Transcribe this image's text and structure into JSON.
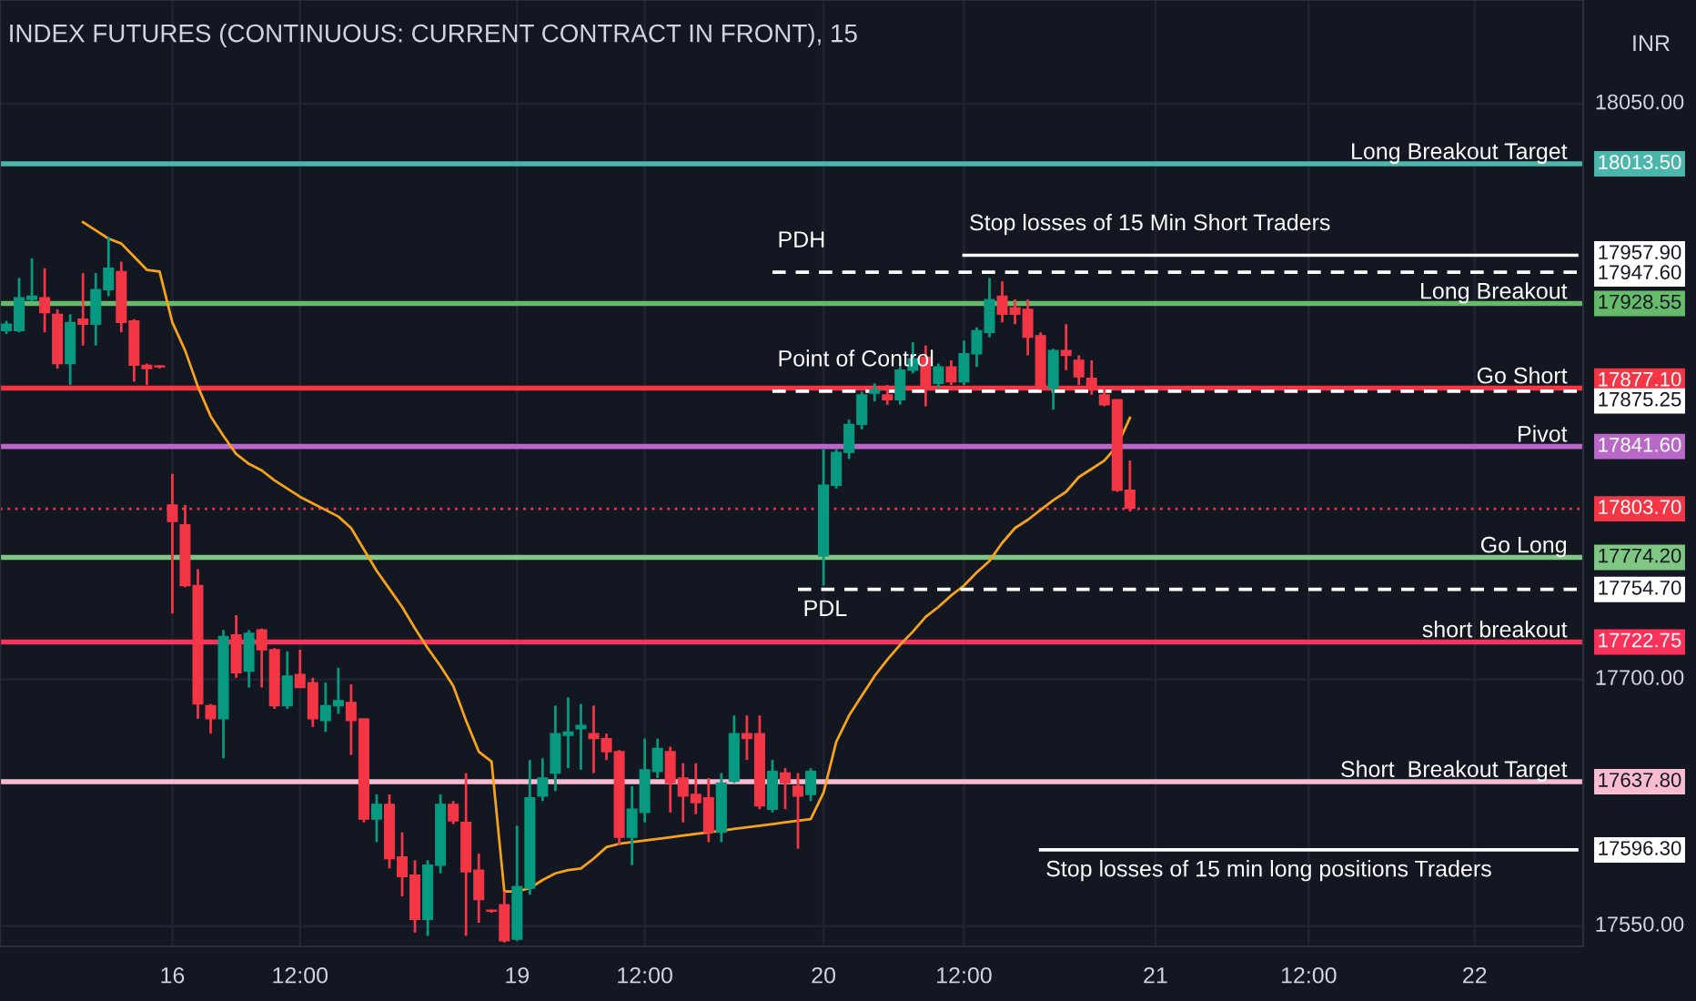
{
  "chart_data": {
    "type": "candlestick",
    "title": "INDEX FUTURES (CONTINUOUS: CURRENT CONTRACT IN FRONT), 15",
    "categories": [
      null,
      null,
      null,
      null,
      null,
      null,
      null,
      null,
      null,
      null,
      null,
      null,
      null,
      "16",
      null,
      null,
      null,
      null,
      null,
      null,
      null,
      null,
      null,
      "12:00",
      null,
      null,
      null,
      null,
      null,
      null,
      null,
      null,
      null,
      null,
      null,
      null,
      null,
      null,
      null,
      null,
      "19",
      null,
      null,
      null,
      null,
      null,
      null,
      null,
      null,
      null,
      "12:00",
      null,
      null,
      null,
      null,
      null,
      null,
      null,
      null,
      null,
      null,
      null,
      null,
      null,
      "20",
      null,
      null,
      null,
      null,
      null,
      null,
      null,
      null,
      null,
      null,
      "12:00",
      null,
      null,
      null,
      null,
      null,
      null,
      null,
      null,
      null,
      null,
      null,
      null,
      null,
      null,
      "21",
      null,
      null,
      null,
      null,
      null,
      null,
      null,
      null,
      null,
      null,
      null,
      "12:00",
      null,
      null,
      null,
      null,
      null,
      null,
      null,
      null,
      null,
      null,
      null,
      null,
      "22",
      null,
      null,
      null,
      null,
      null,
      null,
      null,
      null
    ],
    "ohlc": [
      [
        17912,
        17918,
        17910,
        17916
      ],
      [
        17912,
        17944,
        17911,
        17932
      ],
      [
        17931,
        17956,
        17930,
        17933
      ],
      [
        17932,
        17950,
        17911,
        17923
      ],
      [
        17922,
        17925,
        17889,
        17892
      ],
      [
        17892,
        17922,
        17879,
        17917
      ],
      [
        17919,
        17947,
        17903,
        17916
      ],
      [
        17916,
        17947,
        17903,
        17937
      ],
      [
        17937,
        17969,
        17933,
        17950
      ],
      [
        17948,
        17954,
        17911,
        17917
      ],
      [
        17918,
        17919,
        17881,
        17891
      ],
      [
        17891,
        17892,
        17879,
        17889
      ],
      [
        17890,
        17891,
        17889,
        17890
      ],
      [
        17806,
        17825,
        17740,
        17796
      ],
      [
        17794,
        17806,
        17756,
        17757
      ],
      [
        17757,
        17767,
        17676,
        17685
      ],
      [
        17684,
        17685,
        17667,
        17676
      ],
      [
        17676,
        17730,
        17652,
        17726
      ],
      [
        17727,
        17739,
        17701,
        17704
      ],
      [
        17705,
        17730,
        17695,
        17728
      ],
      [
        17730,
        17731,
        17695,
        17718
      ],
      [
        17718,
        17719,
        17682,
        17684
      ],
      [
        17684,
        17717,
        17682,
        17702
      ],
      [
        17703,
        17718,
        17695,
        17695
      ],
      [
        17698,
        17701,
        17671,
        17676
      ],
      [
        17675,
        17698,
        17668,
        17684
      ],
      [
        17684,
        17707,
        17679,
        17687
      ],
      [
        17686,
        17697,
        17654,
        17675
      ],
      [
        17676,
        17676,
        17613,
        17615
      ],
      [
        17615,
        17630,
        17601,
        17624
      ],
      [
        17624,
        17630,
        17585,
        17591
      ],
      [
        17592,
        17607,
        17568,
        17580
      ],
      [
        17581,
        17590,
        17546,
        17554
      ],
      [
        17554,
        17590,
        17544,
        17587
      ],
      [
        17587,
        17630,
        17582,
        17624
      ],
      [
        17624,
        17626,
        17612,
        17614
      ],
      [
        17613,
        17643,
        17544,
        17583
      ],
      [
        17584,
        17594,
        17552,
        17566
      ],
      [
        17559,
        17560,
        17558,
        17559
      ],
      [
        17563,
        17571,
        17540,
        17541
      ],
      [
        17542,
        17611,
        17541,
        17574
      ],
      [
        17573,
        17651,
        17569,
        17628
      ],
      [
        17629,
        17652,
        17626,
        17640
      ],
      [
        17643,
        17684,
        17632,
        17667
      ],
      [
        17666,
        17689,
        17646,
        17668
      ],
      [
        17670,
        17685,
        17645,
        17672
      ],
      [
        17667,
        17684,
        17643,
        17664
      ],
      [
        17664,
        17667,
        17651,
        17656
      ],
      [
        17656,
        17657,
        17599,
        17604
      ],
      [
        17604,
        17635,
        17587,
        17621
      ],
      [
        17619,
        17664,
        17613,
        17645
      ],
      [
        17644,
        17664,
        17640,
        17658
      ],
      [
        17656,
        17659,
        17619,
        17637
      ],
      [
        17640,
        17649,
        17613,
        17629
      ],
      [
        17630,
        17649,
        17618,
        17625
      ],
      [
        17628,
        17640,
        17601,
        17607
      ],
      [
        17607,
        17643,
        17601,
        17637
      ],
      [
        17638,
        17678,
        17637,
        17667
      ],
      [
        17667,
        17678,
        17651,
        17664
      ],
      [
        17667,
        17678,
        17621,
        17623
      ],
      [
        17621,
        17651,
        17619,
        17644
      ],
      [
        17643,
        17646,
        17621,
        17637
      ],
      [
        17635,
        17643,
        17597,
        17629
      ],
      [
        17630,
        17646,
        17626,
        17644
      ],
      [
        17775,
        17840,
        17757,
        17818
      ],
      [
        17818,
        17840,
        17816,
        17838
      ],
      [
        17838,
        17858,
        17834,
        17855
      ],
      [
        17855,
        17875,
        17852,
        17873
      ],
      [
        17874,
        17880,
        17869,
        17876
      ],
      [
        17873,
        17879,
        17867,
        17870
      ],
      [
        17870,
        17890,
        17867,
        17888
      ],
      [
        17888,
        17905,
        17886,
        17895
      ],
      [
        17896,
        17903,
        17866,
        17877
      ],
      [
        17880,
        17892,
        17877,
        17890
      ],
      [
        17890,
        17894,
        17879,
        17881
      ],
      [
        17881,
        17906,
        17879,
        17898
      ],
      [
        17898,
        17914,
        17890,
        17912
      ],
      [
        17911,
        17944,
        17908,
        17931
      ],
      [
        17933,
        17942,
        17917,
        17922
      ],
      [
        17926,
        17931,
        17916,
        17922
      ],
      [
        17925,
        17931,
        17897,
        17908
      ],
      [
        17909,
        17911,
        17876,
        17877
      ],
      [
        17877,
        17901,
        17864,
        17900
      ],
      [
        17900,
        17916,
        17888,
        17897
      ],
      [
        17894,
        17897,
        17879,
        17884
      ],
      [
        17883,
        17894,
        17873,
        17877
      ],
      [
        17873,
        17877,
        17866,
        17867
      ],
      [
        17870,
        17870,
        17814,
        17815
      ],
      [
        17815,
        17833,
        17802,
        17804
      ],
      null,
      null,
      null,
      null,
      null,
      null,
      null,
      null,
      null,
      null,
      null,
      null,
      null,
      null,
      null,
      null,
      null,
      null,
      null,
      null,
      null,
      null,
      null,
      null,
      null,
      null,
      null,
      null,
      null,
      null,
      null,
      null,
      null,
      null,
      null
    ],
    "colors": [
      "#089981",
      "#089981",
      "#089981",
      "#f23645",
      "#f23645",
      "#089981",
      "#f23645",
      "#089981",
      "#089981",
      "#f23645",
      "#f23645",
      "#f23645",
      "#f23645",
      "#f23645",
      "#f23645",
      "#f23645",
      "#f23645",
      "#089981",
      "#f23645",
      "#089981",
      "#f23645",
      "#f23645",
      "#089981",
      "#f23645",
      "#f23645",
      "#089981",
      "#089981",
      "#f23645",
      "#f23645",
      "#089981",
      "#f23645",
      "#f23645",
      "#f23645",
      "#089981",
      "#089981",
      "#f23645",
      "#f23645",
      "#f23645",
      "#f23645",
      "#f23645",
      "#089981",
      "#089981",
      "#089981",
      "#089981",
      "#089981",
      "#089981",
      "#f23645",
      "#f23645",
      "#f23645",
      "#089981",
      "#089981",
      "#089981",
      "#f23645",
      "#f23645",
      "#f23645",
      "#f23645",
      "#089981",
      "#089981",
      "#f23645",
      "#f23645",
      "#089981",
      "#f23645",
      "#f23645",
      "#089981",
      "#089981",
      "#089981",
      "#089981",
      "#089981",
      "#089981",
      "#f23645",
      "#089981",
      "#089981",
      "#f23645",
      "#089981",
      "#f23645",
      "#089981",
      "#089981",
      "#089981",
      "#f23645",
      "#f23645",
      "#f23645",
      "#f23645",
      "#089981",
      "#f23645",
      "#f23645",
      "#f23645",
      "#f23645",
      "#f23645",
      "#f23645",
      null,
      null,
      null,
      null,
      null,
      null,
      null,
      null,
      null,
      null,
      null,
      null,
      null,
      null,
      null,
      null,
      null,
      null,
      null,
      null,
      null,
      null,
      null,
      null,
      null,
      null,
      null,
      null,
      null,
      null,
      null,
      null,
      null,
      null,
      null
    ],
    "series": [
      {
        "type": "line",
        "color": "#f7a21b",
        "values": [
          null,
          null,
          null,
          null,
          null,
          null,
          17978,
          17973,
          17968,
          17965,
          17957,
          17949,
          17948,
          17917,
          17900,
          17878,
          17860,
          17848,
          17837,
          17831,
          17827,
          17821,
          17816,
          17811,
          17807,
          17803,
          17799,
          17792,
          17779,
          17766,
          17755,
          17744,
          17731,
          17719,
          17708,
          17696,
          17675,
          17656,
          17650,
          17571,
          17571,
          17573,
          17578,
          17582,
          17584,
          17585,
          17591,
          17598,
          17600,
          17601,
          17602,
          17603,
          17604,
          17605,
          17606,
          17607,
          17608,
          17609,
          17610,
          17611,
          17612,
          17613,
          17614,
          17615,
          17631,
          17662,
          17678,
          17690,
          17702,
          17712,
          17721,
          17729,
          17738,
          17744,
          17751,
          17757,
          17765,
          17772,
          17783,
          17792,
          17797,
          17803,
          17809,
          17814,
          17823,
          17828,
          17833,
          17842,
          17859,
          null,
          null,
          null,
          null,
          null,
          null,
          null,
          null,
          null,
          null,
          null,
          null,
          null,
          null,
          null,
          null,
          null,
          null,
          null,
          null,
          null,
          null,
          null,
          null,
          null,
          null,
          null,
          null,
          null,
          null,
          null,
          null,
          null,
          null,
          null
        ]
      },
      {
        "type": "line",
        "color": "#ffffff",
        "line_style": "solid",
        "values": [
          null,
          null,
          null,
          null,
          null,
          null,
          null,
          null,
          null,
          null,
          null,
          null,
          null,
          null,
          null,
          null,
          null,
          null,
          null,
          null,
          null,
          null,
          null,
          null,
          null,
          null,
          null,
          null,
          null,
          null,
          null,
          null,
          null,
          null,
          null,
          null,
          null,
          null,
          null,
          null,
          null,
          null,
          null,
          null,
          null,
          null,
          null,
          null,
          null,
          null,
          null,
          null,
          null,
          null,
          null,
          null,
          null,
          null,
          null,
          null,
          null,
          null,
          null,
          null,
          null,
          null,
          null,
          null,
          null,
          null,
          null,
          null,
          null,
          null,
          null,
          17957.9,
          17957.9,
          17957.9,
          17957.9,
          17957.9,
          17957.9,
          17957.9,
          17957.9,
          17957.9,
          17957.9,
          17957.9,
          17957.9,
          17957.9,
          17957.9,
          17957.9,
          17957.9,
          17957.9,
          17957.9,
          17957.9,
          17957.9,
          17957.9,
          17957.9,
          17957.9,
          17957.9,
          17957.9,
          17957.9,
          17957.9,
          17957.9,
          17957.9,
          17957.9,
          17957.9,
          17957.9,
          17957.9,
          17957.9,
          17957.9,
          17957.9,
          17957.9,
          17957.9,
          17957.9,
          17957.9,
          17957.9,
          17957.9,
          17957.9,
          17957.9,
          17957.9,
          17957.9,
          17957.9,
          17957.9,
          17957.9
        ]
      },
      {
        "type": "line",
        "color": "#ffffff",
        "line_style": "dashed",
        "values": [
          null,
          null,
          null,
          null,
          null,
          null,
          null,
          null,
          null,
          null,
          null,
          null,
          null,
          null,
          null,
          null,
          null,
          null,
          null,
          null,
          null,
          null,
          null,
          null,
          null,
          null,
          null,
          null,
          null,
          null,
          null,
          null,
          null,
          null,
          null,
          null,
          null,
          null,
          null,
          null,
          null,
          null,
          null,
          null,
          null,
          null,
          null,
          null,
          null,
          null,
          null,
          null,
          null,
          null,
          null,
          null,
          null,
          null,
          null,
          null,
          17947.6,
          17947.6,
          17947.6,
          17947.6,
          17947.6,
          17947.6,
          17947.6,
          17947.6,
          17947.6,
          17947.6,
          17947.6,
          17947.6,
          17947.6,
          17947.6,
          17947.6,
          17947.6,
          17947.6,
          17947.6,
          17947.6,
          17947.6,
          17947.6,
          17947.6,
          17947.6,
          17947.6,
          17947.6,
          17947.6,
          17947.6,
          17947.6,
          17947.6,
          17947.6,
          17947.6,
          17947.6,
          17947.6,
          17947.6,
          17947.6,
          17947.6,
          17947.6,
          17947.6,
          17947.6,
          17947.6,
          17947.6,
          17947.6,
          17947.6,
          17947.6,
          17947.6,
          17947.6,
          17947.6,
          17947.6,
          17947.6,
          17947.6,
          17947.6,
          17947.6,
          17947.6,
          17947.6,
          17947.6,
          17947.6,
          17947.6,
          17947.6,
          17947.6,
          17947.6,
          17947.6,
          17947.6,
          17947.6,
          17947.6
        ]
      },
      {
        "type": "line",
        "color": "#ffffff",
        "line_style": "dashed",
        "values": [
          null,
          null,
          null,
          null,
          null,
          null,
          null,
          null,
          null,
          null,
          null,
          null,
          null,
          null,
          null,
          null,
          null,
          null,
          null,
          null,
          null,
          null,
          null,
          null,
          null,
          null,
          null,
          null,
          null,
          null,
          null,
          null,
          null,
          null,
          null,
          null,
          null,
          null,
          null,
          null,
          null,
          null,
          null,
          null,
          null,
          null,
          null,
          null,
          null,
          null,
          null,
          null,
          null,
          null,
          null,
          null,
          null,
          null,
          null,
          null,
          17875.25,
          17875.25,
          17875.25,
          17875.25,
          17875.25,
          17875.25,
          17875.25,
          17875.25,
          17875.25,
          17875.25,
          17875.25,
          17875.25,
          17875.25,
          17875.25,
          17875.25,
          17875.25,
          17875.25,
          17875.25,
          17875.25,
          17875.25,
          17875.25,
          17875.25,
          17875.25,
          17875.25,
          17875.25,
          17875.25,
          17875.25,
          17875.25,
          17875.25,
          17875.25,
          17875.25,
          17875.25,
          17875.25,
          17875.25,
          17875.25,
          17875.25,
          17875.25,
          17875.25,
          17875.25,
          17875.25,
          17875.25,
          17875.25,
          17875.25,
          17875.25,
          17875.25,
          17875.25,
          17875.25,
          17875.25,
          17875.25,
          17875.25,
          17875.25,
          17875.25,
          17875.25,
          17875.25,
          17875.25,
          17875.25,
          17875.25,
          17875.25,
          17875.25,
          17875.25,
          17875.25,
          17875.25,
          17875.25,
          17875.25
        ]
      },
      {
        "type": "line",
        "color": "#ffffff",
        "line_style": "dashed",
        "values": [
          null,
          null,
          null,
          null,
          null,
          null,
          null,
          null,
          null,
          null,
          null,
          null,
          null,
          null,
          null,
          null,
          null,
          null,
          null,
          null,
          null,
          null,
          null,
          null,
          null,
          null,
          null,
          null,
          null,
          null,
          null,
          null,
          null,
          null,
          null,
          null,
          null,
          null,
          null,
          null,
          null,
          null,
          null,
          null,
          null,
          null,
          null,
          null,
          null,
          null,
          null,
          null,
          null,
          null,
          null,
          null,
          null,
          null,
          null,
          null,
          null,
          null,
          17754.7,
          17754.7,
          17754.7,
          17754.7,
          17754.7,
          17754.7,
          17754.7,
          17754.7,
          17754.7,
          17754.7,
          17754.7,
          17754.7,
          17754.7,
          17754.7,
          17754.7,
          17754.7,
          17754.7,
          17754.7,
          17754.7,
          17754.7,
          17754.7,
          17754.7,
          17754.7,
          17754.7,
          17754.7,
          17754.7,
          17754.7,
          17754.7,
          17754.7,
          17754.7,
          17754.7,
          17754.7,
          17754.7,
          17754.7,
          17754.7,
          17754.7,
          17754.7,
          17754.7,
          17754.7,
          17754.7,
          17754.7,
          17754.7,
          17754.7,
          17754.7,
          17754.7,
          17754.7,
          17754.7,
          17754.7,
          17754.7,
          17754.7,
          17754.7,
          17754.7,
          17754.7,
          17754.7,
          17754.7,
          17754.7,
          17754.7,
          17754.7,
          17754.7,
          17754.7,
          17754.7,
          17754.7
        ]
      },
      {
        "type": "line",
        "color": "#ffffff",
        "line_style": "solid",
        "values": [
          null,
          null,
          null,
          null,
          null,
          null,
          null,
          null,
          null,
          null,
          null,
          null,
          null,
          null,
          null,
          null,
          null,
          null,
          null,
          null,
          null,
          null,
          null,
          null,
          null,
          null,
          null,
          null,
          null,
          null,
          null,
          null,
          null,
          null,
          null,
          null,
          null,
          null,
          null,
          null,
          null,
          null,
          null,
          null,
          null,
          null,
          null,
          null,
          null,
          null,
          null,
          null,
          null,
          null,
          null,
          null,
          null,
          null,
          null,
          null,
          null,
          null,
          null,
          null,
          null,
          null,
          null,
          null,
          null,
          null,
          null,
          null,
          null,
          null,
          null,
          null,
          null,
          null,
          null,
          null,
          null,
          17596.3,
          17596.3,
          17596.3,
          17596.3,
          17596.3,
          17596.3,
          17596.3,
          17596.3,
          17596.3,
          17596.3,
          17596.3,
          17596.3,
          17596.3,
          17596.3,
          17596.3,
          17596.3,
          17596.3,
          17596.3,
          17596.3,
          17596.3,
          17596.3,
          17596.3,
          17596.3,
          17596.3,
          17596.3,
          17596.3,
          17596.3,
          17596.3,
          17596.3,
          17596.3,
          17596.3,
          17596.3,
          17596.3,
          17596.3,
          17596.3,
          17596.3,
          17596.3,
          17596.3,
          17596.3,
          17596.3,
          17596.3,
          17596.3,
          17596.3
        ]
      }
    ],
    "ref_lines": [
      {
        "axis": "y",
        "value": 18013.5,
        "label": "Long Breakout Target",
        "color": "#4db6ac"
      },
      {
        "axis": "y",
        "value": 17928.55,
        "label": "Long Breakout",
        "color": "#66bb6a"
      },
      {
        "axis": "y",
        "value": 17877.1,
        "label": "Go Short",
        "color": "#f23645"
      },
      {
        "axis": "y",
        "value": 17841.6,
        "label": "Pivot",
        "color": "#ba68c8"
      },
      {
        "axis": "y",
        "value": 17803.7,
        "label": null,
        "color": "#f23645",
        "line_style": "dotted"
      },
      {
        "axis": "y",
        "value": 17774.2,
        "label": "Go Long",
        "color": "#81c784"
      },
      {
        "axis": "y",
        "value": 17722.75,
        "label": "short breakout",
        "color": "#f7325b"
      },
      {
        "axis": "y",
        "value": 17637.8,
        "label": "Short  Breakout Target",
        "color": "#f8bbd0"
      }
    ],
    "annotations": [
      {
        "text": "PDH",
        "y": 17947.6
      },
      {
        "text": "Stop losses of 15 Min Short Traders",
        "y": 17957.9
      },
      {
        "text": "Point of Control",
        "y": 17875.25
      },
      {
        "text": "PDL",
        "y": 17754.7
      },
      {
        "text": "Stop losses of 15 min long positions Traders",
        "y": 17596.3
      },
      "INR"
    ],
    "ylim": [
      17537.6,
      18113.1
    ],
    "yticks": [
      {
        "value": 17550,
        "label": "17550.00"
      },
      {
        "value": 17596.3,
        "label": "17596.30"
      },
      {
        "value": 17637.8,
        "label": "17637.80"
      },
      {
        "value": 17700,
        "label": "17700.00"
      },
      {
        "value": 17722.75,
        "label": "17722.75"
      },
      {
        "value": 17754.7,
        "label": "17754.70"
      },
      {
        "value": 17774.2,
        "label": "17774.20"
      },
      {
        "value": 17803.7,
        "label": "17803.70"
      },
      {
        "value": 17841.6,
        "label": "17841.60"
      },
      {
        "value": 17875.25,
        "label": "17875.25"
      },
      {
        "value": 17877.1,
        "label": "17877.10"
      },
      {
        "value": 17928.55,
        "label": "17928.55"
      },
      {
        "value": 17947.6,
        "label": "17947.60"
      },
      {
        "value": 17957.9,
        "label": "17957.90"
      },
      {
        "value": 18013.5,
        "label": "18013.50"
      },
      {
        "value": 18050,
        "label": "18050.00"
      }
    ],
    "grid": true
  }
}
